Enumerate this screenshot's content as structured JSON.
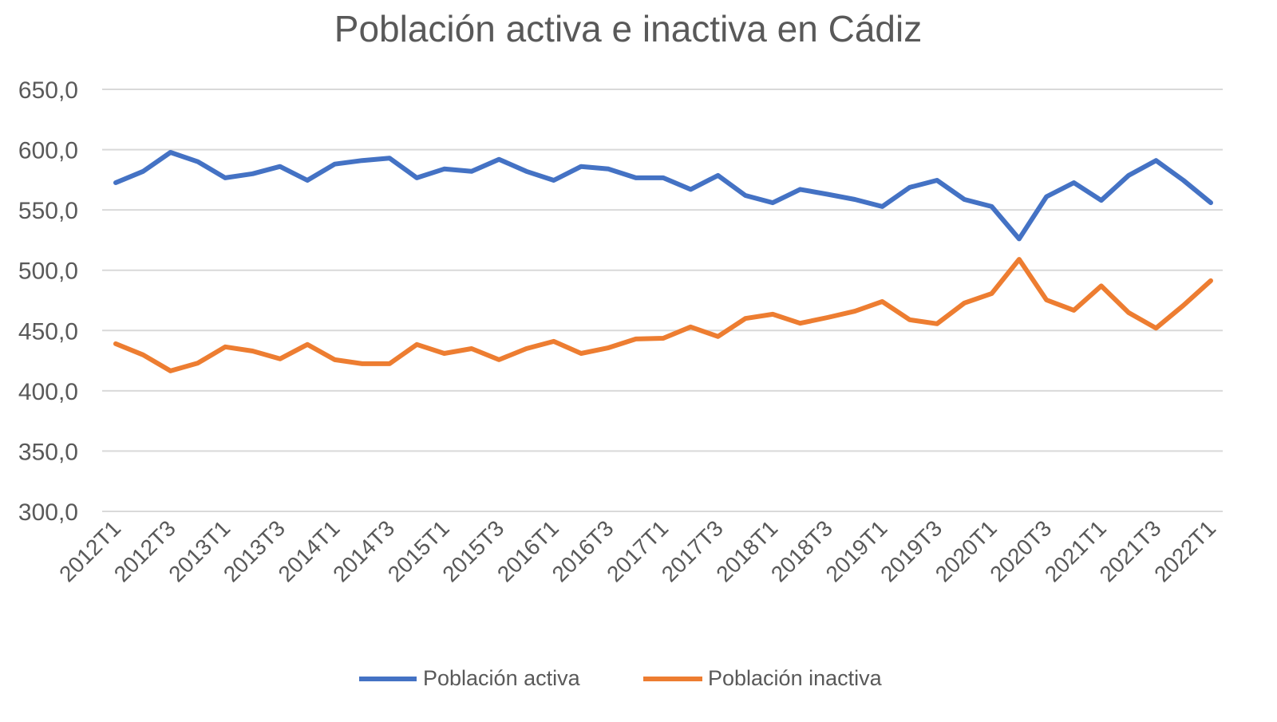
{
  "chart_data": {
    "type": "line",
    "title": "Población activa e inactiva en Cádiz",
    "xlabel": "",
    "ylabel": "",
    "ylim": [
      300,
      650
    ],
    "yticks": [
      "300,0",
      "350,0",
      "400,0",
      "450,0",
      "500,0",
      "550,0",
      "600,0",
      "650,0"
    ],
    "ytick_values": [
      300,
      350,
      400,
      450,
      500,
      550,
      600,
      650
    ],
    "grid": true,
    "legend": "bottom",
    "categories": [
      "2012T1",
      "2012T2",
      "2012T3",
      "2012T4",
      "2013T1",
      "2013T2",
      "2013T3",
      "2013T4",
      "2014T1",
      "2014T2",
      "2014T3",
      "2014T4",
      "2015T1",
      "2015T2",
      "2015T3",
      "2015T4",
      "2016T1",
      "2016T2",
      "2016T3",
      "2016T4",
      "2017T1",
      "2017T2",
      "2017T3",
      "2017T4",
      "2018T1",
      "2018T2",
      "2018T3",
      "2018T4",
      "2019T1",
      "2019T2",
      "2019T3",
      "2019T4",
      "2020T1",
      "2020T2",
      "2020T3",
      "2020T4",
      "2021T1",
      "2021T2",
      "2021T3",
      "2021T4",
      "2022T1"
    ],
    "xtick_labels": [
      "2012T1",
      "2012T3",
      "2013T1",
      "2013T3",
      "2014T1",
      "2014T3",
      "2015T1",
      "2015T3",
      "2016T1",
      "2016T3",
      "2017T1",
      "2017T3",
      "2018T1",
      "2018T3",
      "2019T1",
      "2019T3",
      "2020T1",
      "2020T3",
      "2021T1",
      "2021T3",
      "2022T1"
    ],
    "series": [
      {
        "name": "Población activa",
        "color": "#4472C4",
        "values": [
          572.6,
          582,
          597.7,
          590,
          576.6,
          580,
          586,
          574.6,
          588,
          591,
          593,
          576.6,
          584,
          582,
          592,
          582,
          574.6,
          586,
          584,
          576.6,
          576.6,
          567,
          578.6,
          562,
          556,
          567,
          563,
          558.7,
          552.8,
          568.7,
          574.6,
          558.7,
          552.8,
          526,
          561,
          572.6,
          558,
          578.6,
          591,
          574.6,
          556
        ]
      },
      {
        "name": "Población inactiva",
        "color": "#ED7D31",
        "values": [
          439,
          429.8,
          416.5,
          423,
          436.4,
          433,
          426.5,
          438.4,
          425.8,
          422.5,
          422.5,
          438.4,
          431,
          435,
          425.8,
          435,
          441,
          431,
          435.7,
          443,
          443.6,
          453,
          445,
          460,
          463.5,
          456,
          460.8,
          466,
          474,
          458.9,
          455.6,
          472.8,
          480.7,
          509,
          475.3,
          466.8,
          487,
          464.8,
          452,
          470.8,
          491.3
        ]
      }
    ]
  }
}
